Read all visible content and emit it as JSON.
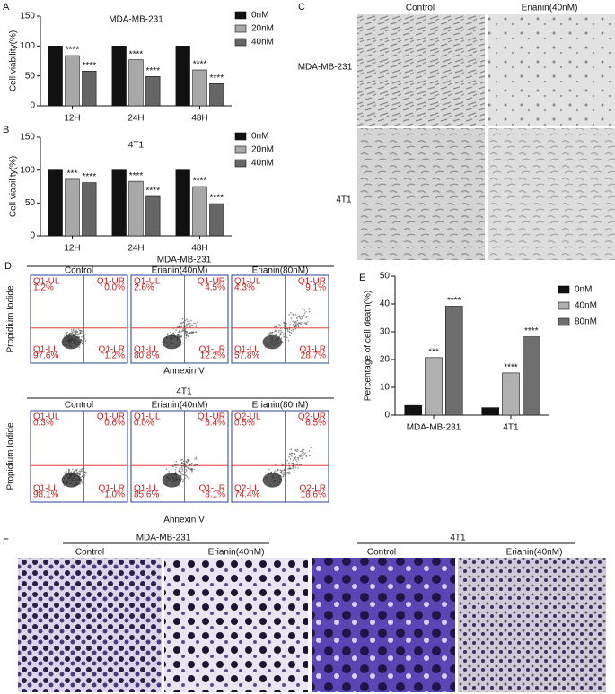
{
  "panel_labels": {
    "a": "A",
    "b": "B",
    "c": "C",
    "d": "D",
    "e": "E",
    "f": "F"
  },
  "chart_data": [
    {
      "type": "bar",
      "title": "MDA-MB-231",
      "y_label": "Cell viability(%)",
      "categories": [
        "12H",
        "24H",
        "48H"
      ],
      "ylim": [
        0,
        150
      ],
      "yticks": [
        0,
        50,
        100,
        150
      ],
      "series": [
        {
          "name": "0nM",
          "color": "#111111",
          "values": [
            100,
            100,
            100
          ]
        },
        {
          "name": "20nM",
          "color": "#a8a8a8",
          "values": [
            84,
            77,
            60
          ],
          "significance": [
            "****",
            "****",
            "****"
          ]
        },
        {
          "name": "40nM",
          "color": "#666666",
          "values": [
            58,
            49,
            37
          ],
          "significance": [
            "****",
            "****",
            "****"
          ]
        }
      ]
    },
    {
      "type": "bar",
      "title": "4T1",
      "y_label": "Cell viability(%)",
      "categories": [
        "12H",
        "24H",
        "48H"
      ],
      "ylim": [
        0,
        150
      ],
      "yticks": [
        0,
        50,
        100,
        150
      ],
      "series": [
        {
          "name": "0nM",
          "color": "#111111",
          "values": [
            100,
            100,
            100
          ]
        },
        {
          "name": "20nM",
          "color": "#a8a8a8",
          "values": [
            86,
            83,
            75
          ],
          "significance": [
            "***",
            "****",
            "****"
          ]
        },
        {
          "name": "40nM",
          "color": "#666666",
          "values": [
            81,
            60,
            49
          ],
          "significance": [
            "****",
            "****",
            "****"
          ]
        }
      ]
    },
    {
      "type": "bar",
      "y_label": "Percentage of cell death(%)",
      "categories": [
        "MDA-MB-231",
        "4T1"
      ],
      "ylim": [
        0,
        50
      ],
      "yticks": [
        0,
        10,
        20,
        30,
        40,
        50
      ],
      "series": [
        {
          "name": "0nM",
          "color": "#111111",
          "values": [
            3.5,
            2.7
          ]
        },
        {
          "name": "40nM",
          "color": "#b0b0b0",
          "values": [
            20.7,
            15.2
          ],
          "significance": [
            "***",
            "****"
          ]
        },
        {
          "name": "80nM",
          "color": "#6e6e6e",
          "values": [
            39.2,
            28.2
          ],
          "significance": [
            "****",
            "****"
          ]
        }
      ]
    }
  ],
  "panel_c": {
    "columns": [
      "Control",
      "Erianin(40nM)"
    ],
    "rows": [
      "MDA-MB-231",
      "4T1"
    ]
  },
  "panel_d": {
    "x_label": "Annexin V",
    "y_label": "Propidium Iodide",
    "groups": [
      {
        "title": "MDA-MB-231",
        "columns": [
          "Control",
          "Erianin(40nM)",
          "Erianin(80nM)"
        ],
        "plots": [
          [
            [
              "Q1-UL",
              "1.2%"
            ],
            [
              "Q1-UR",
              "0.0%"
            ],
            [
              "Q1-LL",
              "97.6%"
            ],
            [
              "Q1-LR",
              "1.2%"
            ]
          ],
          [
            [
              "Q1-UL",
              "2.6%"
            ],
            [
              "Q1-UR",
              "4.5%"
            ],
            [
              "Q1-LL",
              "80.8%"
            ],
            [
              "Q1-LR",
              "12.2%"
            ]
          ],
          [
            [
              "Q1-UL",
              "4.3%"
            ],
            [
              "Q1-UR",
              "9.1%"
            ],
            [
              "Q1-LL",
              "57.8%"
            ],
            [
              "Q1-LR",
              "28.7%"
            ]
          ]
        ]
      },
      {
        "title": "4T1",
        "columns": [
          "Control",
          "Erianin(40nM)",
          "Erianin(80nM)"
        ],
        "plots": [
          [
            [
              "Q1-UL",
              "0.3%"
            ],
            [
              "Q1-UR",
              "0.6%"
            ],
            [
              "Q1-LL",
              "98.1%"
            ],
            [
              "Q1-LR",
              "1.0%"
            ]
          ],
          [
            [
              "Q1-UL",
              "0.0%"
            ],
            [
              "Q1-UR",
              "6.4%"
            ],
            [
              "Q1-LL",
              "85.6%"
            ],
            [
              "Q1-LR",
              "8.1%"
            ]
          ],
          [
            [
              "Q2-UL",
              "0.5%"
            ],
            [
              "Q2-UR",
              "6.5%"
            ],
            [
              "Q2-LL",
              "74.4%"
            ],
            [
              "Q2-LR",
              "18.6%"
            ]
          ]
        ]
      }
    ]
  },
  "panel_f": {
    "groups": [
      {
        "title": "MDA-MB-231",
        "columns": [
          "Control",
          "Erianin(40nM)"
        ]
      },
      {
        "title": "4T1",
        "columns": [
          "Control",
          "Erianin(40nM)"
        ]
      }
    ]
  }
}
